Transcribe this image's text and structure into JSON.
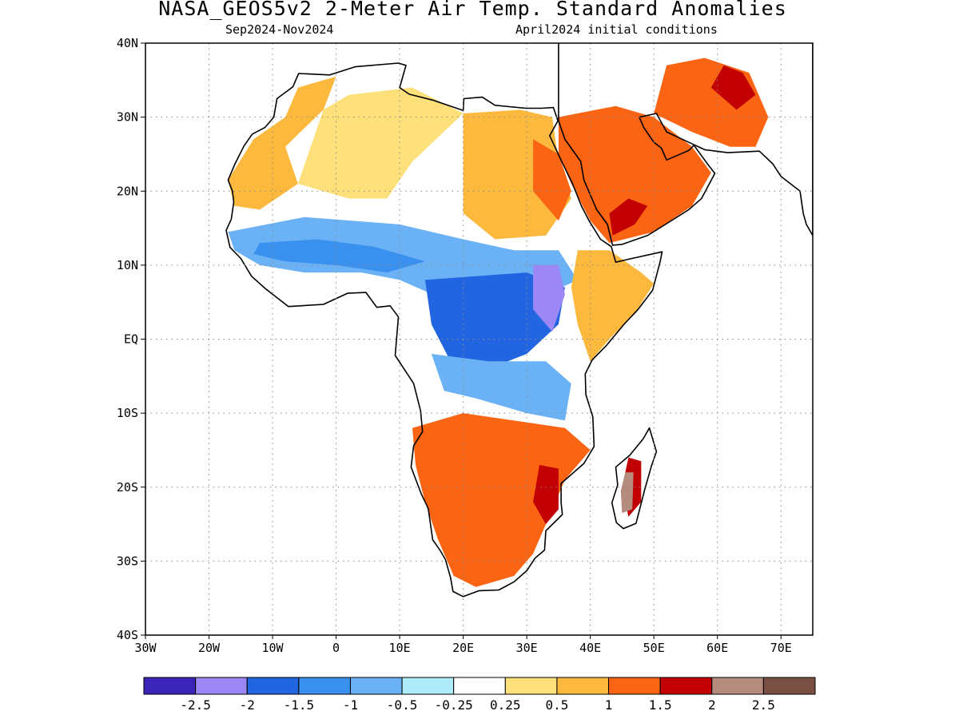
{
  "header": {
    "title": "NASA_GEOS5v2 2-Meter Air Temp. Standard Anomalies",
    "period": "Sep2024-Nov2024",
    "init": "April2024 initial conditions"
  },
  "map": {
    "lon_range": [
      -30,
      75
    ],
    "lat_range": [
      -40,
      40
    ],
    "gridlines": "dotted",
    "lat_ticks": [
      {
        "value": 40,
        "label": "40N"
      },
      {
        "value": 30,
        "label": "30N"
      },
      {
        "value": 20,
        "label": "20N"
      },
      {
        "value": 10,
        "label": "10N"
      },
      {
        "value": 0,
        "label": "EQ"
      },
      {
        "value": -10,
        "label": "10S"
      },
      {
        "value": -20,
        "label": "20S"
      },
      {
        "value": -30,
        "label": "30S"
      },
      {
        "value": -40,
        "label": "40S"
      }
    ],
    "lon_ticks": [
      {
        "value": -30,
        "label": "30W"
      },
      {
        "value": -20,
        "label": "20W"
      },
      {
        "value": -10,
        "label": "10W"
      },
      {
        "value": 0,
        "label": "0"
      },
      {
        "value": 10,
        "label": "10E"
      },
      {
        "value": 20,
        "label": "20E"
      },
      {
        "value": 30,
        "label": "30E"
      },
      {
        "value": 40,
        "label": "40E"
      },
      {
        "value": 50,
        "label": "50E"
      },
      {
        "value": 60,
        "label": "60E"
      },
      {
        "value": 70,
        "label": "70E"
      }
    ],
    "coastline_color": "#000000",
    "ocean_color": "#ffffff",
    "africa_outline": [
      [
        -5.9,
        35.9
      ],
      [
        -1,
        35.7
      ],
      [
        3,
        36.8
      ],
      [
        9.8,
        37.3
      ],
      [
        11,
        37
      ],
      [
        10,
        34
      ],
      [
        11.5,
        33.1
      ],
      [
        15.2,
        32.3
      ],
      [
        20,
        30.9
      ],
      [
        20.1,
        32.5
      ],
      [
        23,
        32.7
      ],
      [
        25,
        31.6
      ],
      [
        29.9,
        31.2
      ],
      [
        32.3,
        31.2
      ],
      [
        34.2,
        31.3
      ],
      [
        34.9,
        29.5
      ],
      [
        33.6,
        27.5
      ],
      [
        35.5,
        24
      ],
      [
        37.2,
        21
      ],
      [
        38.6,
        18
      ],
      [
        39.8,
        16
      ],
      [
        41.6,
        13.5
      ],
      [
        43.3,
        12.5
      ],
      [
        44,
        10.4
      ],
      [
        46,
        10.8
      ],
      [
        51.3,
        11.8
      ],
      [
        51,
        10.5
      ],
      [
        49.8,
        6.6
      ],
      [
        47.5,
        4
      ],
      [
        45.3,
        2
      ],
      [
        42.5,
        -0.9
      ],
      [
        40.3,
        -2.8
      ],
      [
        39.2,
        -4.7
      ],
      [
        39.3,
        -7.5
      ],
      [
        40.4,
        -10.5
      ],
      [
        40.6,
        -14.5
      ],
      [
        39,
        -16.8
      ],
      [
        35.4,
        -19.5
      ],
      [
        35.4,
        -22.1
      ],
      [
        35.6,
        -23.7
      ],
      [
        33,
        -25.9
      ],
      [
        32.8,
        -28.5
      ],
      [
        31.3,
        -29.6
      ],
      [
        30,
        -31.3
      ],
      [
        28,
        -32.8
      ],
      [
        25.6,
        -33.9
      ],
      [
        22.5,
        -34
      ],
      [
        20,
        -34.8
      ],
      [
        18.4,
        -34.1
      ],
      [
        18,
        -32.2
      ],
      [
        17.2,
        -29.8
      ],
      [
        16.4,
        -28.6
      ],
      [
        15.2,
        -27.1
      ],
      [
        14.5,
        -22.9
      ],
      [
        13.4,
        -20.9
      ],
      [
        11.8,
        -17.3
      ],
      [
        12.2,
        -14.4
      ],
      [
        13.6,
        -12.5
      ],
      [
        13.3,
        -9.7
      ],
      [
        12.2,
        -6
      ],
      [
        9.3,
        -2.2
      ],
      [
        9.8,
        3
      ],
      [
        8.5,
        4.5
      ],
      [
        6.4,
        4.3
      ],
      [
        4.7,
        6.3
      ],
      [
        1.8,
        6.2
      ],
      [
        -2,
        4.7
      ],
      [
        -7.5,
        4.4
      ],
      [
        -11.1,
        6.8
      ],
      [
        -13.3,
        8.5
      ],
      [
        -15,
        10.9
      ],
      [
        -16.7,
        12.4
      ],
      [
        -17.3,
        14.7
      ],
      [
        -16.5,
        16.2
      ],
      [
        -16.1,
        18.5
      ],
      [
        -16.3,
        20
      ],
      [
        -17,
        21.5
      ],
      [
        -15.9,
        23.7
      ],
      [
        -14.5,
        26.1
      ],
      [
        -13.2,
        27.7
      ],
      [
        -11.2,
        28.6
      ],
      [
        -9.8,
        30
      ],
      [
        -9.3,
        32.5
      ],
      [
        -6.8,
        34.1
      ],
      [
        -5.9,
        35.9
      ]
    ],
    "madagascar_outline": [
      [
        49.3,
        -12
      ],
      [
        50.4,
        -15.2
      ],
      [
        49.6,
        -17.2
      ],
      [
        48.5,
        -20.5
      ],
      [
        47.2,
        -24.9
      ],
      [
        45.2,
        -25.6
      ],
      [
        44.1,
        -24.8
      ],
      [
        43.4,
        -22.1
      ],
      [
        44.3,
        -19.7
      ],
      [
        44,
        -17.3
      ],
      [
        46.2,
        -15.7
      ],
      [
        48.3,
        -13.5
      ],
      [
        49.3,
        -12
      ]
    ],
    "arabia_outline": [
      [
        35,
        29.5
      ],
      [
        36,
        27
      ],
      [
        38.5,
        24
      ],
      [
        39,
        21.5
      ],
      [
        41,
        17.5
      ],
      [
        42.7,
        15.5
      ],
      [
        43.5,
        12.7
      ],
      [
        45,
        12.8
      ],
      [
        49,
        14
      ],
      [
        52,
        15.6
      ],
      [
        55.5,
        17.5
      ],
      [
        57.5,
        19
      ],
      [
        59.6,
        22.4
      ],
      [
        58.5,
        23.6
      ],
      [
        56.3,
        26.2
      ],
      [
        55.5,
        25.5
      ],
      [
        52,
        24.2
      ],
      [
        51.2,
        25.8
      ],
      [
        50,
        26.6
      ],
      [
        48.4,
        28.6
      ],
      [
        47.7,
        30
      ],
      [
        50.4,
        30.5
      ],
      [
        52,
        28
      ],
      [
        55,
        26.8
      ],
      [
        58,
        25.6
      ],
      [
        61.6,
        25.2
      ],
      [
        66.6,
        25.4
      ],
      [
        68.7,
        23.7
      ],
      [
        70,
        22
      ],
      [
        73,
        20
      ],
      [
        73.5,
        17
      ],
      [
        74,
        15.5
      ],
      [
        75,
        14
      ],
      [
        75,
        41
      ],
      [
        35,
        41
      ]
    ],
    "anomaly_patches": [
      {
        "category": "0.5 to 1",
        "region": "northwest Africa",
        "value": 0.75,
        "points": [
          [
            -17,
            21.5
          ],
          [
            -13,
            27
          ],
          [
            -8,
            30
          ],
          [
            -6,
            34
          ],
          [
            0,
            35.5
          ],
          [
            -2,
            31
          ],
          [
            -8,
            26
          ],
          [
            -6,
            21
          ],
          [
            -12,
            17.5
          ],
          [
            -16,
            18
          ]
        ]
      },
      {
        "category": "0.25 to 0.5",
        "region": "Sahara",
        "value": 0.4,
        "points": [
          [
            -6,
            21
          ],
          [
            -2,
            31
          ],
          [
            2,
            33
          ],
          [
            12,
            34
          ],
          [
            20,
            30.5
          ],
          [
            12,
            24
          ],
          [
            8,
            19
          ],
          [
            2,
            19
          ]
        ]
      },
      {
        "category": "0.5 to 1",
        "region": "eastern Sahara and Egypt",
        "value": 0.8,
        "points": [
          [
            20,
            30.5
          ],
          [
            29,
            31
          ],
          [
            34,
            30
          ],
          [
            35,
            24
          ],
          [
            37,
            19
          ],
          [
            33,
            14
          ],
          [
            25,
            13.5
          ],
          [
            20,
            17
          ]
        ]
      },
      {
        "category": "1 to 1.5",
        "region": "Egypt Red Sea coast",
        "value": 1.2,
        "points": [
          [
            31,
            27
          ],
          [
            35,
            25
          ],
          [
            37,
            20
          ],
          [
            35,
            16
          ],
          [
            31,
            20
          ]
        ]
      },
      {
        "category": "1 to 1.5",
        "region": "Arabian Peninsula",
        "value": 1.25,
        "points": [
          [
            35,
            30
          ],
          [
            44,
            31.5
          ],
          [
            50,
            30
          ],
          [
            56,
            26
          ],
          [
            59,
            22.5
          ],
          [
            56,
            18
          ],
          [
            50,
            14.5
          ],
          [
            43,
            13
          ],
          [
            40,
            16
          ],
          [
            37,
            21
          ],
          [
            35,
            25
          ]
        ]
      },
      {
        "category": "1.5 to 2",
        "region": "southern Red Sea coast",
        "value": 1.6,
        "points": [
          [
            43.5,
            14
          ],
          [
            47,
            15.5
          ],
          [
            49,
            18
          ],
          [
            46,
            19
          ],
          [
            43,
            17
          ]
        ]
      },
      {
        "category": "1 to 1.5",
        "region": "Iran",
        "value": 1.2,
        "points": [
          [
            50,
            30.5
          ],
          [
            56,
            28
          ],
          [
            62,
            26
          ],
          [
            66,
            26
          ],
          [
            68,
            30
          ],
          [
            65,
            36
          ],
          [
            58,
            38
          ],
          [
            52,
            37
          ]
        ]
      },
      {
        "category": "1.5 to 2",
        "region": "Iran east",
        "value": 1.7,
        "points": [
          [
            59,
            34
          ],
          [
            63,
            31
          ],
          [
            66,
            33
          ],
          [
            64,
            36
          ],
          [
            61,
            37
          ]
        ]
      },
      {
        "category": "-1 to -0.5",
        "region": "Sahel band",
        "value": -0.8,
        "points": [
          [
            -17,
            14.5
          ],
          [
            -5,
            16.5
          ],
          [
            10,
            15.5
          ],
          [
            20,
            13.5
          ],
          [
            28,
            12
          ],
          [
            35,
            12
          ],
          [
            38,
            8
          ],
          [
            33,
            6
          ],
          [
            26,
            5
          ],
          [
            18,
            5
          ],
          [
            10,
            8
          ],
          [
            4,
            9
          ],
          [
            -5,
            9
          ],
          [
            -12,
            10
          ],
          [
            -16,
            12
          ]
        ]
      },
      {
        "category": "-1.5 to -1",
        "region": "Sahel core",
        "value": -1.2,
        "points": [
          [
            -12,
            13
          ],
          [
            -3,
            13.5
          ],
          [
            6,
            12.5
          ],
          [
            14,
            10.5
          ],
          [
            8,
            9
          ],
          [
            0,
            10
          ],
          [
            -8,
            10.5
          ],
          [
            -13,
            11.5
          ]
        ]
      },
      {
        "category": "-2 to -1.5",
        "region": "central Africa",
        "value": -1.7,
        "points": [
          [
            14,
            8
          ],
          [
            22,
            8.5
          ],
          [
            30,
            9
          ],
          [
            36,
            7
          ],
          [
            35,
            2
          ],
          [
            30,
            -2
          ],
          [
            24,
            -4
          ],
          [
            18,
            -3
          ],
          [
            15,
            2
          ]
        ]
      },
      {
        "category": "-2.5 to -2",
        "region": "South Sudan and Ethiopia border",
        "value": -2.3,
        "points": [
          [
            31,
            10
          ],
          [
            35,
            10
          ],
          [
            36,
            6
          ],
          [
            34,
            1
          ],
          [
            31,
            4
          ]
        ]
      },
      {
        "category": "-1 to -0.5",
        "region": "Congo basin south",
        "value": -0.75,
        "points": [
          [
            15,
            -2
          ],
          [
            24,
            -3
          ],
          [
            33,
            -3
          ],
          [
            37,
            -6
          ],
          [
            36,
            -11
          ],
          [
            30,
            -10
          ],
          [
            22,
            -8
          ],
          [
            17,
            -7
          ]
        ]
      },
      {
        "category": "0.5 to 1",
        "region": "Horn of Africa",
        "value": 0.9,
        "points": [
          [
            38,
            12
          ],
          [
            43,
            12
          ],
          [
            48,
            9
          ],
          [
            50,
            7.5
          ],
          [
            47,
            3.5
          ],
          [
            43,
            0
          ],
          [
            40,
            -3
          ],
          [
            38,
            2
          ],
          [
            37,
            7
          ]
        ]
      },
      {
        "category": "1 to 1.5",
        "region": "southern Africa",
        "value": 1.2,
        "points": [
          [
            12,
            -12
          ],
          [
            20,
            -10
          ],
          [
            28,
            -11
          ],
          [
            36,
            -12
          ],
          [
            40,
            -15
          ],
          [
            36,
            -19
          ],
          [
            33,
            -25
          ],
          [
            31,
            -29
          ],
          [
            28,
            -32
          ],
          [
            22,
            -33.5
          ],
          [
            18.5,
            -32
          ],
          [
            16,
            -27
          ],
          [
            14,
            -22
          ],
          [
            12.5,
            -17
          ]
        ]
      },
      {
        "category": "1.5 to 2",
        "region": "Mozambique and Zimbabwe",
        "value": 1.7,
        "points": [
          [
            32,
            -17
          ],
          [
            35,
            -17.5
          ],
          [
            35,
            -23
          ],
          [
            33,
            -25
          ],
          [
            31,
            -22
          ]
        ]
      },
      {
        "category": "1.5 to 2",
        "region": "Madagascar interior",
        "value": 1.6,
        "points": [
          [
            46,
            -16
          ],
          [
            48,
            -16.5
          ],
          [
            48,
            -22
          ],
          [
            46,
            -24
          ],
          [
            45,
            -20
          ]
        ]
      },
      {
        "category": "2 to 2.5",
        "region": "Madagascar highlands",
        "value": 2.3,
        "points": [
          [
            45.5,
            -18
          ],
          [
            46.8,
            -18
          ],
          [
            46.6,
            -23
          ],
          [
            45,
            -23.5
          ],
          [
            44.8,
            -20.5
          ]
        ]
      }
    ]
  },
  "colorbar": {
    "colors": [
      "#3b25b8",
      "#9b87f5",
      "#2165e0",
      "#3a90ef",
      "#6ab2f5",
      "#adebf8",
      "#ffffff",
      "#fde07a",
      "#fdb93d",
      "#fa6412",
      "#c20004",
      "#b48b7c",
      "#7a4f43"
    ],
    "labels": [
      "-2.5",
      "-2",
      "-1.5",
      "-1",
      "-0.5",
      "-0.25",
      "0.25",
      "0.5",
      "1",
      "1.5",
      "2",
      "2.5"
    ]
  }
}
